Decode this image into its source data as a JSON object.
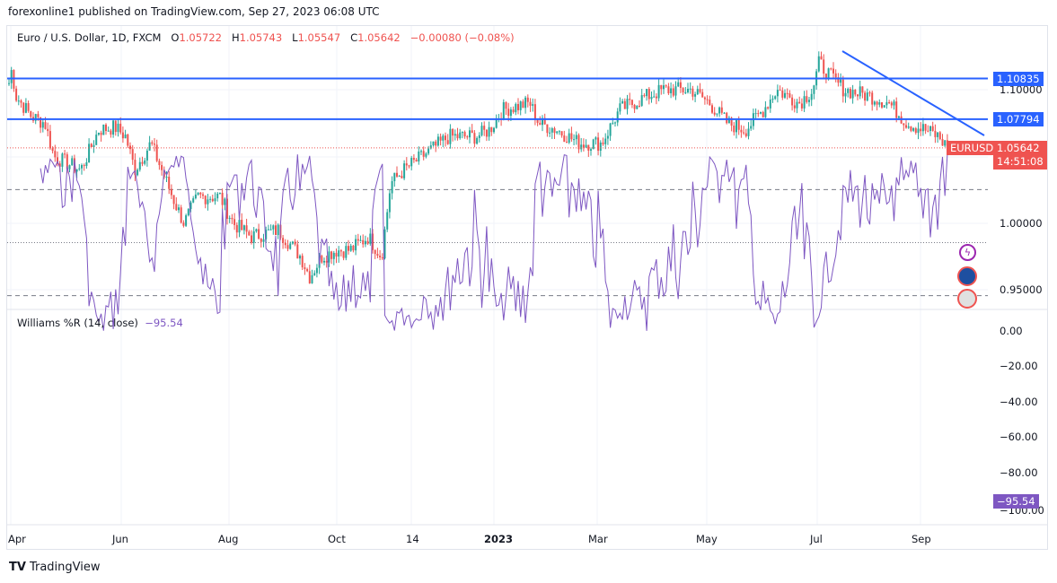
{
  "header": {
    "published": "forexonline1 published on TradingView.com, Sep 27, 2023 06:08 UTC"
  },
  "legend": {
    "symbol": "Euro / U.S. Dollar, 1D, FXCM",
    "o_label": "O",
    "o": "1.05722",
    "h_label": "H",
    "h": "1.05743",
    "l_label": "L",
    "l": "1.05547",
    "c_label": "C",
    "c": "1.05642",
    "change": "−0.00080 (−0.08%)"
  },
  "price_scale": {
    "ticks": [
      "1.10000",
      "1.00000",
      "0.95000"
    ],
    "line1": "1.10835",
    "line2": "1.07794",
    "last": "1.05642",
    "countdown": "14:51:08",
    "symbol_tag": "EURUSD"
  },
  "williams": {
    "label": "Williams %R (14, close)",
    "value": "−95.54",
    "ticks": [
      "0.00",
      "−20.00",
      "−40.00",
      "−60.00",
      "−80.00",
      "−100.00"
    ],
    "last_tag": "−95.54"
  },
  "time_axis": [
    "Apr",
    "Jun",
    "Aug",
    "Oct",
    "14",
    "2023",
    "Mar",
    "May",
    "Jul",
    "Sep"
  ],
  "footer": {
    "brand": "TradingView"
  },
  "colors": {
    "up": "#26a69a",
    "down": "#ef5350",
    "line": "#2962ff",
    "indicator": "#7e57c2"
  },
  "chart_data": {
    "type": "candlestick",
    "price_path": [
      [
        0,
        1.105
      ],
      [
        3,
        1.115
      ],
      [
        8,
        1.095
      ],
      [
        25,
        1.08
      ],
      [
        40,
        1.075
      ],
      [
        50,
        1.05
      ],
      [
        80,
        1.04
      ],
      [
        100,
        1.07
      ],
      [
        118,
        1.072
      ],
      [
        130,
        1.065
      ],
      [
        140,
        1.04
      ],
      [
        158,
        1.06
      ],
      [
        170,
        1.04
      ],
      [
        185,
        1.015
      ],
      [
        195,
        1.0
      ],
      [
        210,
        1.02
      ],
      [
        235,
        1.02
      ],
      [
        250,
        1.0
      ],
      [
        270,
        0.99
      ],
      [
        300,
        0.995
      ],
      [
        325,
        0.975
      ],
      [
        335,
        0.96
      ],
      [
        348,
        0.975
      ],
      [
        365,
        0.98
      ],
      [
        380,
        0.98
      ],
      [
        400,
        0.99
      ],
      [
        415,
        0.975
      ],
      [
        425,
        1.03
      ],
      [
        440,
        1.04
      ],
      [
        470,
        1.055
      ],
      [
        490,
        1.065
      ],
      [
        520,
        1.065
      ],
      [
        535,
        1.07
      ],
      [
        550,
        1.085
      ],
      [
        580,
        1.09
      ],
      [
        590,
        1.075
      ],
      [
        610,
        1.07
      ],
      [
        635,
        1.06
      ],
      [
        660,
        1.06
      ],
      [
        680,
        1.085
      ],
      [
        710,
        1.095
      ],
      [
        730,
        1.1
      ],
      [
        760,
        1.1
      ],
      [
        780,
        1.09
      ],
      [
        800,
        1.075
      ],
      [
        820,
        1.07
      ],
      [
        840,
        1.085
      ],
      [
        855,
        1.1
      ],
      [
        880,
        1.09
      ],
      [
        895,
        1.1
      ],
      [
        902,
        1.12
      ],
      [
        915,
        1.11
      ],
      [
        930,
        1.1
      ],
      [
        960,
        1.095
      ],
      [
        980,
        1.09
      ],
      [
        1000,
        1.075
      ],
      [
        1020,
        1.07
      ],
      [
        1035,
        1.065
      ],
      [
        1045,
        1.0564
      ]
    ],
    "williams_period": 14,
    "williams_levels": [
      -20,
      -50,
      -80
    ]
  }
}
